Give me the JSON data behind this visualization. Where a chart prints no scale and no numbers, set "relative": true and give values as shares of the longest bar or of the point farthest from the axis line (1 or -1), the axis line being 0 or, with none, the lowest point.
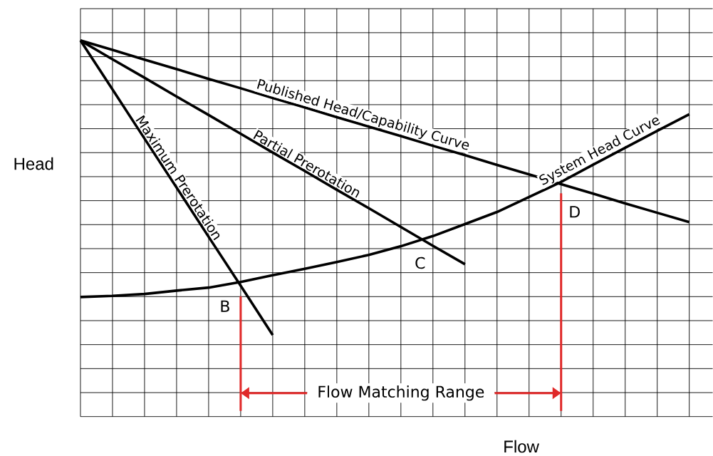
{
  "chart_data": {
    "type": "line",
    "xlabel": "Flow",
    "ylabel": "Head",
    "relative": true,
    "grid": true,
    "categories": [
      null,
      null,
      null,
      null,
      null,
      null,
      null,
      null,
      null,
      null,
      null,
      null,
      null,
      null,
      null,
      null,
      null,
      null,
      null,
      null
    ],
    "series": [
      {
        "name": "Published Head/Capability Curve",
        "color": "#000000",
        "values": [
          1,
          0.975,
          0.949,
          0.924,
          0.898,
          0.873,
          0.847,
          0.822,
          0.796,
          0.771,
          0.746,
          0.72,
          0.695,
          0.669,
          0.644,
          0.618,
          0.593,
          0.567,
          0.542,
          0.517
        ]
      },
      {
        "name": "Partial Prerotation",
        "color": "#000000",
        "values": [
          1,
          0.95,
          0.901,
          0.851,
          0.802,
          0.752,
          0.702,
          0.653,
          0.603,
          0.554,
          0.504,
          0.454,
          0.405,
          null,
          null,
          null,
          null,
          null,
          null,
          null
        ]
      },
      {
        "name": "Maximum Prerotation",
        "color": "#000000",
        "values": [
          1,
          0.87,
          0.739,
          0.609,
          0.478,
          0.348,
          0.217,
          null,
          null,
          null,
          null,
          null,
          null,
          null,
          null,
          null,
          null,
          null,
          null,
          null
        ]
      },
      {
        "name": "System Head Curve",
        "color": "#000000",
        "values": [
          0.318,
          0.321,
          0.326,
          0.335,
          0.343,
          0.358,
          0.376,
          0.393,
          0.411,
          0.43,
          0.453,
          0.48,
          0.512,
          0.544,
          0.584,
          0.624,
          0.67,
          0.715,
          0.76,
          0.804
        ]
      }
    ],
    "annotations": [
      "B",
      "C",
      "D",
      "Flow Matching Range"
    ]
  }
}
